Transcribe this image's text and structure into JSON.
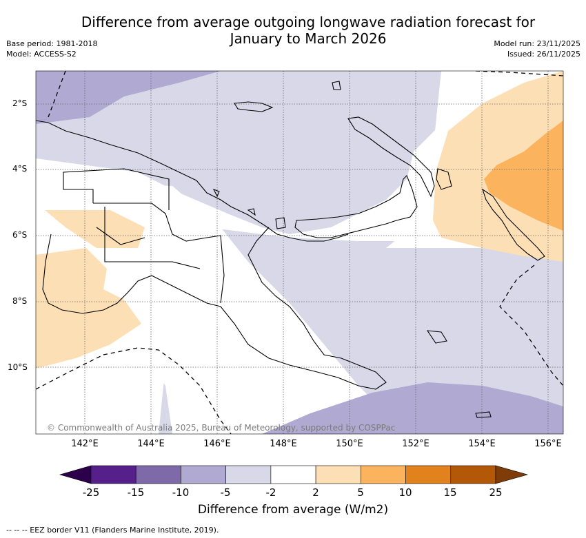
{
  "title_line1": "Difference from average outgoing longwave radiation forecast for",
  "title_line2": "January to March 2026",
  "base_period": "Base period: 1981-2018",
  "model": "Model: ACCESS-S2",
  "model_run": "Model run: 23/11/2025",
  "issued": "Issued: 26/11/2025",
  "lat_labels": [
    "2°S",
    "4°S",
    "6°S",
    "8°S",
    "10°S"
  ],
  "lon_labels": [
    "142°E",
    "144°E",
    "146°E",
    "148°E",
    "150°E",
    "152°E",
    "154°E",
    "156°E"
  ],
  "copyright": "© Commonwealth of Australia 2025, Bureau of Meteorology, supported by COSPPac",
  "colorbar": {
    "title": "Difference from average (W/m2)",
    "ticks": [
      "-25",
      "-15",
      "-10",
      "-5",
      "-2",
      "2",
      "5",
      "10",
      "15",
      "25"
    ],
    "colors": [
      "#56208a",
      "#7e6aa8",
      "#b0a9d1",
      "#d8d8e9",
      "#ffffff",
      "#fddfb5",
      "#fbb35e",
      "#e2821d",
      "#b35807"
    ],
    "under_color": "#2d004b",
    "over_color": "#7f3b08"
  },
  "legend_text": "-- -- -- EEZ border V11 (Flanders Marine Institute, 2019)."
}
